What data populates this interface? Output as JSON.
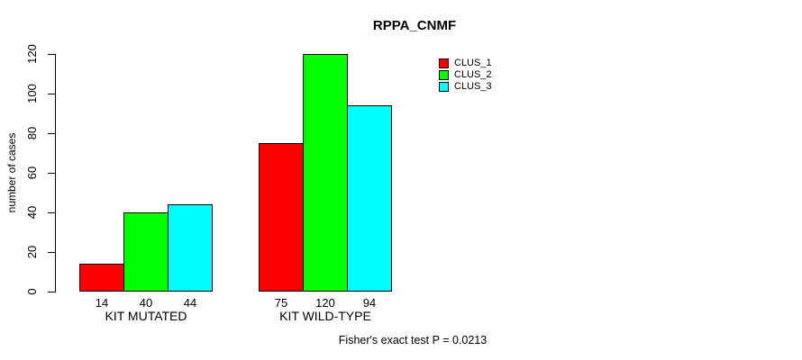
{
  "title": "RPPA_CNMF",
  "y_axis": {
    "label": "number of cases",
    "ticks": [
      "0",
      "20",
      "40",
      "60",
      "80",
      "100",
      "120"
    ]
  },
  "footer": "Fisher's exact test P = 0.0213",
  "legend": {
    "items": [
      {
        "label": "CLUS_1",
        "color": "#FF0000"
      },
      {
        "label": "CLUS_2",
        "color": "#00FF00"
      },
      {
        "label": "CLUS_3",
        "color": "#00FFFF"
      }
    ]
  },
  "chart_data": {
    "type": "bar",
    "title": "RPPA_CNMF",
    "categories": [
      "KIT MUTATED",
      "KIT WILD-TYPE"
    ],
    "series": [
      {
        "name": "CLUS_1",
        "color": "#FF0000",
        "values": [
          14,
          75
        ]
      },
      {
        "name": "CLUS_2",
        "color": "#00FF00",
        "values": [
          40,
          120
        ]
      },
      {
        "name": "CLUS_3",
        "color": "#00FFFF",
        "values": [
          44,
          94
        ]
      }
    ],
    "xlabel": "",
    "ylabel": "number of cases",
    "ylim": [
      0,
      120
    ],
    "y_ticks": [
      0,
      20,
      40,
      60,
      80,
      100,
      120
    ],
    "bar_value_labels": [
      [
        14,
        40,
        44
      ],
      [
        75,
        120,
        94
      ]
    ],
    "grid": false,
    "legend_position": "inside-top-right",
    "annotation": "Fisher's exact test P = 0.0213"
  }
}
